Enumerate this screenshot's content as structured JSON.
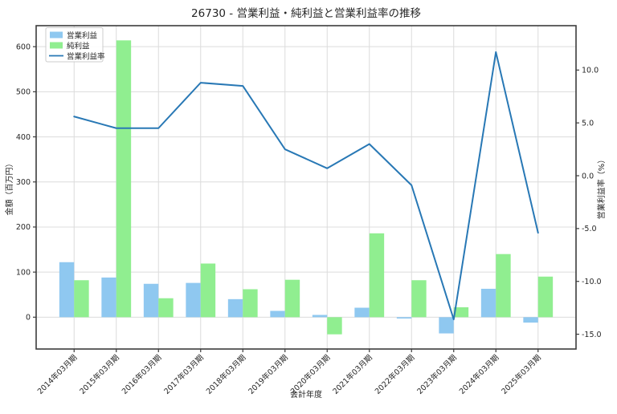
{
  "title": "26730 - 営業利益・純利益と営業利益率の推移",
  "legend": {
    "items": [
      "営業利益",
      "純利益",
      "営業利益率"
    ]
  },
  "colors": {
    "bar_operating_profit": "#8FC8F0",
    "bar_net_profit": "#90EE90",
    "line_margin": "#2878B5",
    "grid": "#DCDCDC",
    "spine": "#3C3C3C",
    "legend_border": "#CCCCCC",
    "background": "#FFFFFF"
  },
  "chart_data": {
    "type": "bar",
    "subtype": "grouped-bars-with-line-dual-axis",
    "title": "26730 - 営業利益・純利益と営業利益率の推移",
    "xlabel": "会計年度",
    "ylabel_left": "金額（百万円）",
    "ylabel_right": "営業利益率（%）",
    "categories": [
      "2014年03月期",
      "2015年03月期",
      "2016年03月期",
      "2017年03月期",
      "2018年03月期",
      "2019年03月期",
      "2020年03月期",
      "2021年03月期",
      "2022年03月期",
      "2023年03月期",
      "2024年03月期",
      "2025年03月期"
    ],
    "series": [
      {
        "name": "営業利益",
        "type": "bar",
        "axis": "left",
        "color": "#8FC8F0",
        "values": [
          122,
          88,
          74,
          76,
          40,
          14,
          5,
          21,
          -3,
          -36,
          63,
          -12
        ]
      },
      {
        "name": "純利益",
        "type": "bar",
        "axis": "left",
        "color": "#90EE90",
        "values": [
          82,
          614,
          42,
          119,
          62,
          83,
          -38,
          186,
          82,
          22,
          140,
          90
        ]
      },
      {
        "name": "営業利益率",
        "type": "line",
        "axis": "right",
        "color": "#2878B5",
        "values": [
          5.6,
          4.5,
          4.5,
          8.8,
          8.5,
          2.5,
          0.7,
          3.0,
          -0.9,
          -13.6,
          11.7,
          -5.4
        ]
      }
    ],
    "left_ticks": [
      0,
      100,
      200,
      300,
      400,
      500,
      600
    ],
    "left_ylim": [
      -70.6,
      646.6
    ],
    "right_ticks": [
      -15.0,
      -10.0,
      -5.0,
      0.0,
      5.0,
      10.0
    ],
    "right_ylim": [
      -16.4,
      14.2
    ],
    "grid": true,
    "legend_position": "upper left"
  }
}
